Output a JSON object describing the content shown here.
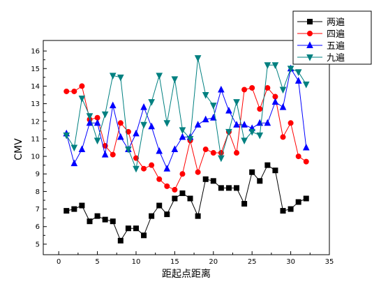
{
  "chart_data": {
    "type": "line",
    "title": "",
    "xlabel": "距起点距离",
    "ylabel": "CMV",
    "xlim": [
      -2,
      35
    ],
    "ylim": [
      4.4,
      16.6
    ],
    "x_ticks": [
      0,
      5,
      10,
      15,
      20,
      25,
      30,
      35
    ],
    "y_ticks": [
      5,
      6,
      7,
      8,
      9,
      10,
      11,
      12,
      13,
      14,
      15,
      16
    ],
    "grid": false,
    "legend": "top-right",
    "x": [
      1,
      2,
      3,
      4,
      5,
      6,
      7,
      8,
      9,
      10,
      11,
      12,
      13,
      14,
      15,
      16,
      17,
      18,
      19,
      20,
      21,
      22,
      23,
      24,
      25,
      26,
      27,
      28,
      29,
      30,
      31,
      32
    ],
    "series": [
      {
        "name": "两遍",
        "color": "#000000",
        "marker": "square",
        "values": [
          6.9,
          7.0,
          7.2,
          6.3,
          6.6,
          6.4,
          6.3,
          5.2,
          5.9,
          5.9,
          5.5,
          6.6,
          7.2,
          6.7,
          7.6,
          7.9,
          7.6,
          6.6,
          8.7,
          8.6,
          8.2,
          8.2,
          8.2,
          7.3,
          9.1,
          8.6,
          9.5,
          9.2,
          6.9,
          7.0,
          7.4,
          7.6
        ]
      },
      {
        "name": "四遍",
        "color": "#ff0000",
        "marker": "circle",
        "values": [
          13.7,
          13.7,
          14.0,
          12.1,
          12.2,
          10.6,
          10.1,
          11.9,
          11.4,
          9.9,
          9.3,
          9.5,
          8.7,
          8.3,
          8.1,
          9.0,
          10.9,
          9.1,
          10.4,
          10.2,
          10.2,
          11.4,
          10.2,
          13.8,
          13.9,
          12.7,
          13.9,
          13.4,
          11.1,
          11.9,
          10.0,
          9.7
        ]
      },
      {
        "name": "五遍",
        "color": "#0000ff",
        "marker": "triangle-up",
        "values": [
          11.3,
          9.6,
          10.4,
          11.9,
          11.9,
          10.1,
          12.9,
          11.1,
          10.4,
          11.3,
          12.8,
          11.7,
          10.3,
          9.3,
          10.4,
          11.1,
          11.1,
          11.8,
          12.1,
          12.2,
          13.8,
          12.6,
          11.8,
          11.8,
          11.6,
          11.9,
          11.9,
          13.1,
          12.8,
          15.0,
          14.3,
          10.5
        ]
      },
      {
        "name": "九遍",
        "color": "#008080",
        "marker": "triangle-down",
        "values": [
          11.2,
          10.5,
          13.3,
          12.3,
          10.9,
          12.4,
          14.6,
          14.5,
          10.4,
          9.3,
          11.8,
          13.1,
          14.6,
          11.9,
          14.4,
          11.5,
          11.0,
          15.6,
          13.5,
          12.9,
          9.9,
          11.4,
          13.1,
          10.9,
          11.4,
          11.2,
          15.2,
          15.2,
          13.8,
          15.0,
          14.8,
          14.1
        ]
      }
    ]
  }
}
